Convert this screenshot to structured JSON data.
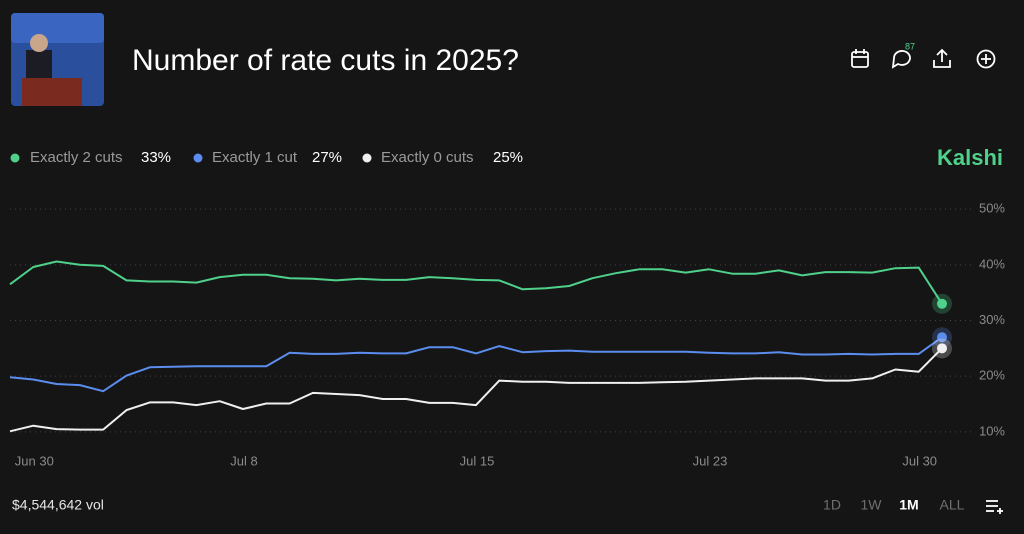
{
  "header": {
    "title": "Number of rate cuts in 2025?",
    "comment_count": "87"
  },
  "brand": "Kalshi",
  "volume": "$4,544,642 vol",
  "ranges": [
    "1D",
    "1W",
    "1M",
    "ALL"
  ],
  "active_range": "1M",
  "chart_data": {
    "type": "line",
    "categories": [
      null,
      "Jun 30",
      null,
      null,
      null,
      null,
      null,
      null,
      null,
      null,
      "Jul 8",
      null,
      null,
      null,
      null,
      null,
      null,
      null,
      null,
      null,
      "Jul 15",
      null,
      null,
      null,
      null,
      null,
      null,
      null,
      null,
      null,
      "Jul 23",
      null,
      null,
      null,
      null,
      null,
      null,
      null,
      null,
      "Jul 30",
      null
    ],
    "series": [
      {
        "name": "Exactly 2 cuts",
        "current_label": "33%",
        "color": "#4fd18b",
        "values": [
          36.5,
          39.6,
          40.6,
          40,
          39.8,
          37.2,
          37,
          37,
          36.8,
          37.8,
          38.2,
          38.2,
          37.6,
          37.5,
          37.2,
          37.5,
          37.3,
          37.3,
          37.8,
          37.6,
          37.3,
          37.2,
          35.6,
          35.8,
          36.2,
          37.6,
          38.5,
          39.2,
          39.2,
          38.6,
          39.2,
          38.4,
          38.4,
          39,
          38.1,
          38.7,
          38.7,
          38.6,
          39.4,
          39.5,
          33
        ]
      },
      {
        "name": "Exactly 1 cut",
        "current_label": "27%",
        "color": "#5b8def",
        "values": [
          19.8,
          19.4,
          18.6,
          18.4,
          17.3,
          20.1,
          21.6,
          21.7,
          21.8,
          21.8,
          21.8,
          21.8,
          24.2,
          24,
          24,
          24.2,
          24.1,
          24.1,
          25.2,
          25.2,
          24.1,
          25.4,
          24.3,
          24.5,
          24.6,
          24.4,
          24.4,
          24.4,
          24.4,
          24.4,
          24.2,
          24.1,
          24.1,
          24.3,
          23.9,
          23.9,
          24,
          23.9,
          24,
          24,
          27
        ]
      },
      {
        "name": "Exactly 0 cuts",
        "current_label": "25%",
        "color": "#f0f0f0",
        "values": [
          10.1,
          11.1,
          10.5,
          10.4,
          10.4,
          13.9,
          15.3,
          15.3,
          14.8,
          15.5,
          14.1,
          15.1,
          15.1,
          17,
          16.8,
          16.6,
          15.9,
          15.9,
          15.2,
          15.2,
          14.8,
          19.2,
          19,
          19,
          18.8,
          18.8,
          18.8,
          18.8,
          18.9,
          19,
          19.2,
          19.4,
          19.6,
          19.6,
          19.6,
          19.2,
          19.2,
          19.6,
          21.2,
          20.8,
          25
        ]
      }
    ],
    "ylim": [
      8,
      52
    ],
    "yticks": [
      {
        "value": 10,
        "label": "10%"
      },
      {
        "value": 20,
        "label": "20%"
      },
      {
        "value": 30,
        "label": "30%"
      },
      {
        "value": 40,
        "label": "40%"
      },
      {
        "value": 50,
        "label": "50%"
      }
    ],
    "grid": true
  }
}
